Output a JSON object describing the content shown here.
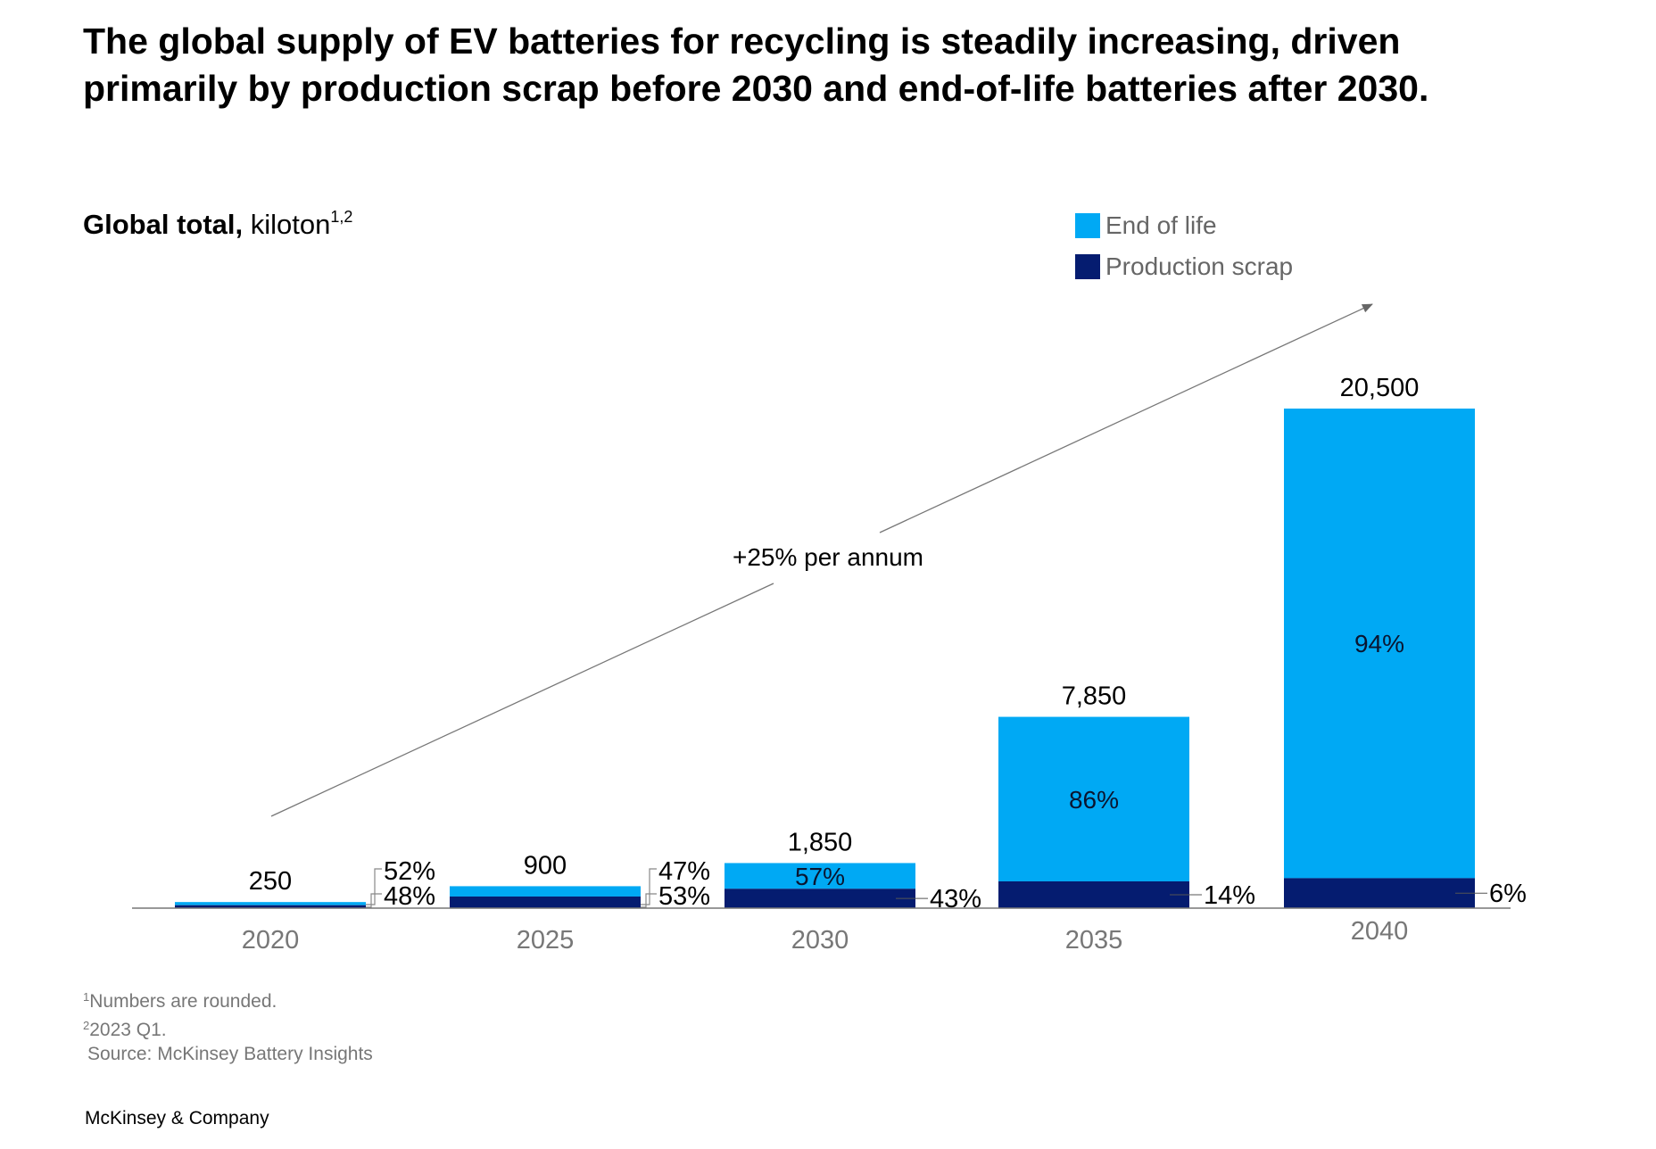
{
  "title": "The global supply of EV batteries for recycling is steadily increasing, driven primarily by production scrap before 2030 and end-of-life batteries after 2030.",
  "subtitle": {
    "bold": "Global total,",
    "unit": "kiloton",
    "footnote_marks": "1,2"
  },
  "legend": [
    {
      "label": "End of life",
      "color": "#00A9F4"
    },
    {
      "label": "Production scrap",
      "color": "#051C70"
    }
  ],
  "growth_annotation": "+25% per annum",
  "chart_data": {
    "type": "bar",
    "stacked": true,
    "categories": [
      "2020",
      "2025",
      "2030",
      "2035",
      "2040"
    ],
    "totals": [
      250,
      900,
      1850,
      7850,
      20500
    ],
    "total_labels": [
      "250",
      "900",
      "1,850",
      "7,850",
      "20,500"
    ],
    "series": [
      {
        "name": "Production scrap",
        "color": "#051C70",
        "share_pct": [
          48,
          53,
          43,
          14,
          6
        ],
        "labels": [
          "48%",
          "53%",
          "43%",
          "14%",
          "6%"
        ]
      },
      {
        "name": "End of life",
        "color": "#00A9F4",
        "share_pct": [
          52,
          47,
          57,
          86,
          94
        ],
        "labels": [
          "52%",
          "47%",
          "57%",
          "86%",
          "94%"
        ]
      }
    ],
    "ylim": [
      0,
      20500
    ]
  },
  "footnotes": {
    "note1_mark": "1",
    "note1_text": "Numbers are rounded.",
    "note2_mark": "2",
    "note2_text": "2023 Q1.",
    "source": "Source: McKinsey Battery Insights"
  },
  "brand": "McKinsey & Company"
}
